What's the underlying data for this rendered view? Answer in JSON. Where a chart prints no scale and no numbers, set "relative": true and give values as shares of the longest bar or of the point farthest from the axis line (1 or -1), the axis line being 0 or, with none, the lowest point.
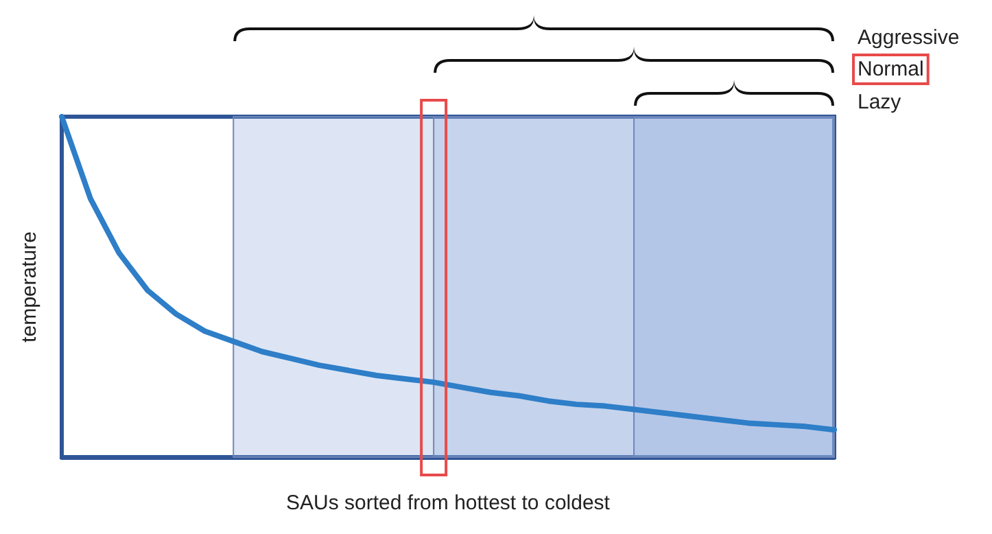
{
  "chart_data": {
    "type": "line",
    "xlabel": "SAUs sorted from hottest to coldest",
    "ylabel": "temperature",
    "relative": true,
    "marker": "none",
    "categories": [
      null,
      null,
      null,
      null,
      null,
      null,
      null,
      null,
      null,
      null,
      null,
      null,
      null,
      null,
      null,
      null,
      null,
      null,
      null,
      null,
      null,
      null,
      null,
      null,
      null,
      null,
      null,
      null
    ],
    "series": [
      {
        "values": [
          1,
          0.76,
          0.6,
          0.49,
          0.42,
          0.37,
          0.34,
          0.31,
          0.29,
          0.27,
          0.255,
          0.24,
          0.23,
          0.22,
          0.205,
          0.19,
          0.18,
          0.165,
          0.155,
          0.15,
          0.14,
          0.13,
          0.12,
          0.11,
          0.1,
          0.095,
          0.09,
          0.08
        ],
        "color": "#2e7ec8"
      }
    ],
    "annotations": [
      "Aggressive",
      "Normal",
      "Lazy"
    ]
  }
}
